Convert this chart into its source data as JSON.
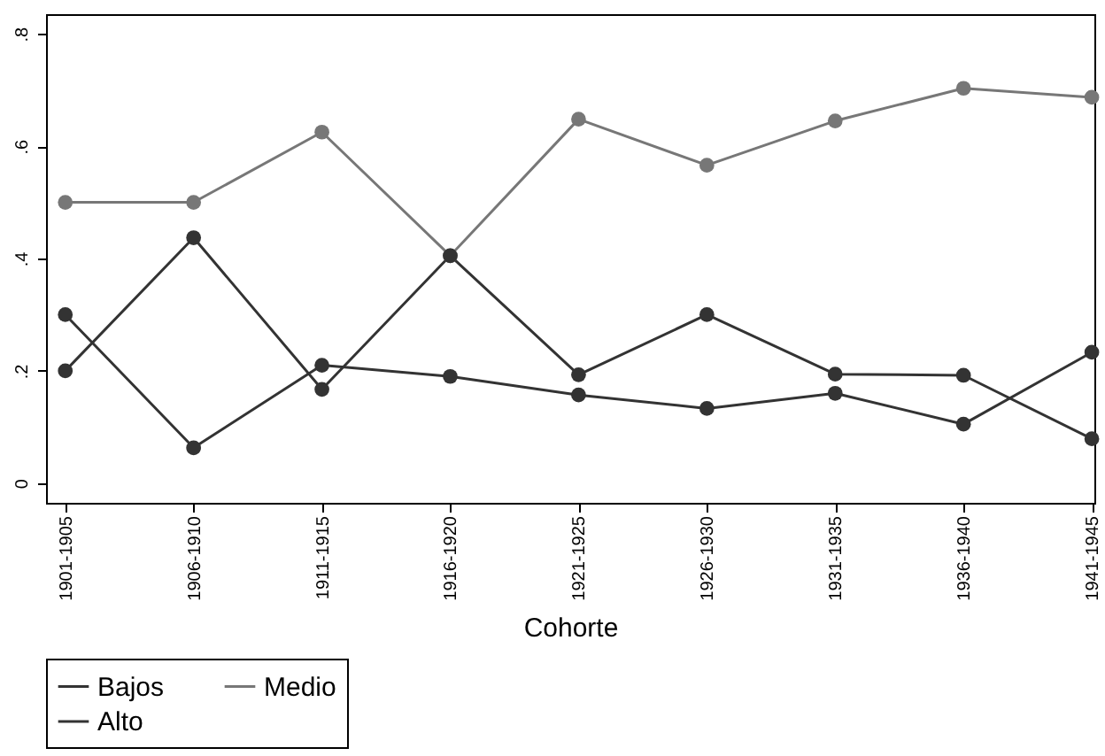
{
  "chart_data": {
    "type": "line",
    "xlabel": "Cohorte",
    "categories": [
      "1901-1905",
      "1906-1910",
      "1911-1915",
      "1916-1920",
      "1921-1925",
      "1926-1930",
      "1931-1935",
      "1936-1940",
      "1941-1945"
    ],
    "series": [
      {
        "name": "Bajos",
        "color": "#333333",
        "values": [
          0.3,
          0.063,
          0.21,
          0.19,
          0.157,
          0.133,
          0.16,
          0.105,
          0.233
        ]
      },
      {
        "name": "Medio",
        "color": "#777777",
        "values": [
          0.5,
          0.5,
          0.625,
          0.405,
          0.648,
          0.566,
          0.645,
          0.703,
          0.687
        ]
      },
      {
        "name": "Alto",
        "color": "#333333",
        "values": [
          0.2,
          0.437,
          0.167,
          0.405,
          0.193,
          0.3,
          0.194,
          0.192,
          0.079
        ]
      }
    ],
    "ylim": [
      -0.035,
      0.835
    ],
    "yticks": [
      {
        "value": 0,
        "label": "0"
      },
      {
        "value": 0.2,
        "label": ".2"
      },
      {
        "value": 0.4,
        "label": ".4"
      },
      {
        "value": 0.6,
        "label": ".6"
      },
      {
        "value": 0.8,
        "label": ".8"
      }
    ],
    "grid": false,
    "legend": "bottom",
    "marker": "circle",
    "line_style": "solid"
  }
}
